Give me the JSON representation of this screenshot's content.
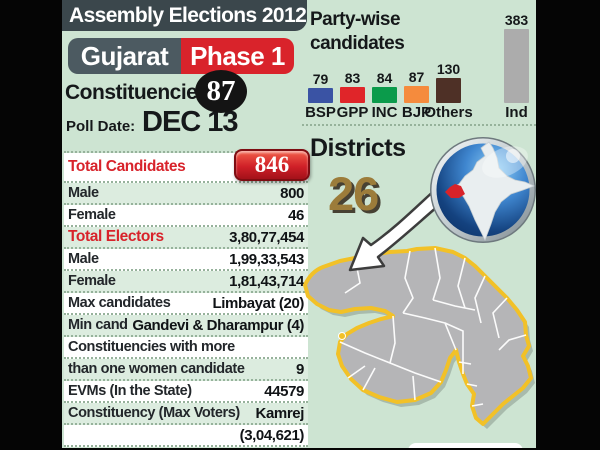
{
  "header": {
    "title": "Assembly Elections 2012",
    "state": "Gujarat",
    "phase": "Phase 1",
    "constituencies_label": "Constituencies",
    "constituencies_value": "87",
    "poll_date_label": "Poll Date:",
    "poll_date_value": "DEC 13"
  },
  "chart_data": {
    "type": "bar",
    "title": "Party-wise candidates",
    "categories": [
      "BSP",
      "GPP",
      "INC",
      "BJP",
      "Others",
      "Ind"
    ],
    "values": [
      79,
      83,
      84,
      87,
      130,
      383
    ],
    "colors": [
      "#3a53a4",
      "#e02529",
      "#0b9b4b",
      "#f58b3d",
      "#4e3026",
      "#acacac"
    ],
    "ylim": [
      0,
      383
    ],
    "grid": false,
    "legend_position": "none",
    "value_labels": "above bars, category labels below bars"
  },
  "districts": {
    "label": "Districts",
    "value": "26"
  },
  "stats_table": {
    "rows": [
      {
        "label": "Total Candidates",
        "value": "846",
        "type": "badge"
      },
      {
        "label": "Male",
        "value": "800"
      },
      {
        "label": "Female",
        "value": "46"
      },
      {
        "label": "Total Electors",
        "value": "3,80,77,454",
        "type": "red"
      },
      {
        "label": "Male",
        "value": "1,99,33,543"
      },
      {
        "label": "Female",
        "value": "1,81,43,714"
      },
      {
        "label": "Max candidates",
        "value": "Limbayat (20)"
      },
      {
        "label": "Min cand",
        "value": "Gandevi & Dharampur (4)"
      },
      {
        "label": "Constituencies with more",
        "value": ""
      },
      {
        "label": "than one women candidate",
        "value": "9"
      },
      {
        "label": "EVMs (In the State)",
        "value": "44579"
      },
      {
        "label": "Constituency (Max Voters)",
        "value": "Kamrej"
      },
      {
        "label": "",
        "value": "(3,04,621)"
      }
    ]
  },
  "colors": {
    "background": "#cde4d2",
    "frame": "#050505",
    "row_tint": "#dcecdf",
    "title_bar": "#3b474c",
    "state_box": "#4c5a61",
    "accent_red": "#d9232b",
    "gold": "#9c7c3a",
    "map_fill": "#b5b5b7",
    "map_outline": "#f2c127",
    "globe_sea_dark": "#082c5e",
    "globe_sea_light": "#7cc0f2"
  }
}
